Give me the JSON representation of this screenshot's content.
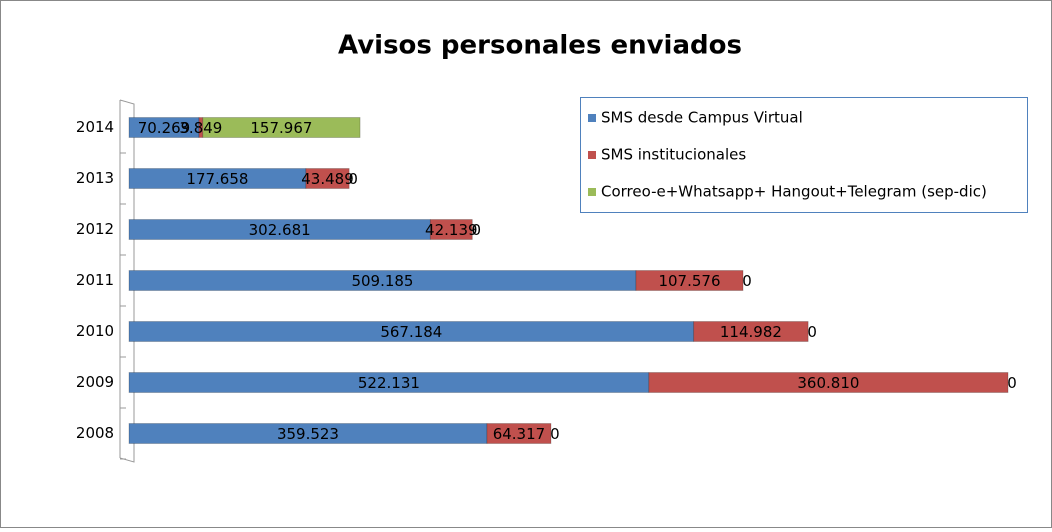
{
  "chart_data": {
    "type": "bar",
    "orientation": "horizontal",
    "stacked": true,
    "title": "Avisos personales enviados",
    "categories": [
      "2008",
      "2009",
      "2010",
      "2011",
      "2012",
      "2013",
      "2014"
    ],
    "xlim": [
      0,
      900000
    ],
    "series": [
      {
        "name": "SMS desde Campus Virtual",
        "color": "#4f81bd",
        "values": [
          359523,
          522131,
          567184,
          509185,
          302681,
          177658,
          70269
        ],
        "value_labels": [
          "359.523",
          "522.131",
          "567.184",
          "509.185",
          "302.681",
          "177.658",
          "70.269"
        ]
      },
      {
        "name": "SMS institucionales",
        "color": "#c0504d",
        "values": [
          64317,
          360810,
          114982,
          107576,
          42139,
          43489,
          3849
        ],
        "value_labels": [
          "64.317",
          "360.810",
          "114.982",
          "107.576",
          "42.139",
          "43.489",
          "3.849"
        ]
      },
      {
        "name": "Correo-e+Whatsapp+ Hangout+Telegram (sep-dic)",
        "color": "#9bbb59",
        "values": [
          0,
          0,
          0,
          0,
          0,
          0,
          157967
        ],
        "value_labels": [
          "0",
          "0",
          "0",
          "0",
          "0",
          "0",
          "157.967"
        ]
      }
    ],
    "legend": "top-right"
  }
}
